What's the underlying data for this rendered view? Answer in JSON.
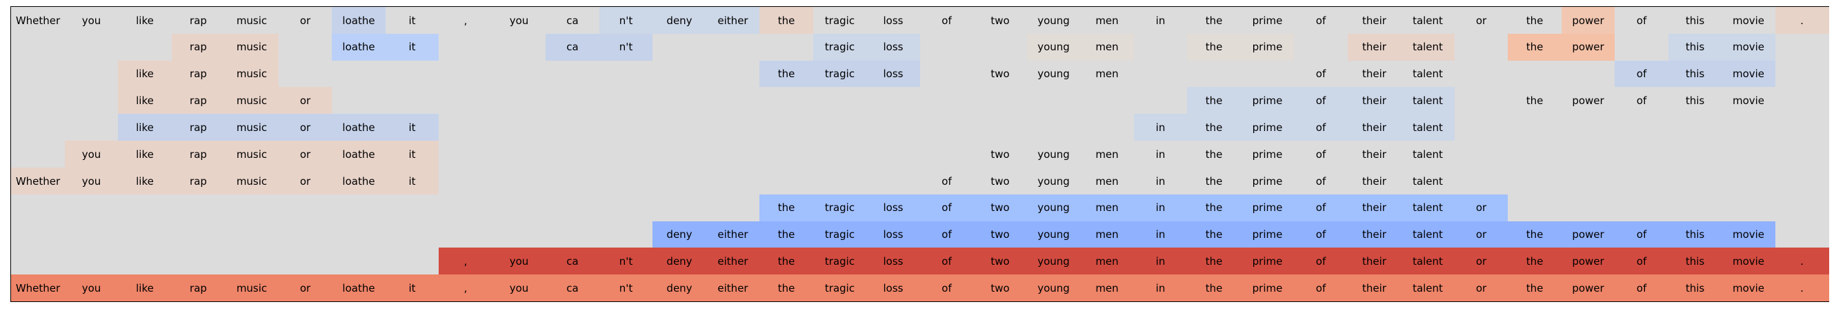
{
  "chart_data": {
    "type": "heatmap",
    "tokens": [
      "Whether",
      "you",
      "like",
      "rap",
      "music",
      "or",
      "loathe",
      "it",
      ",",
      "you",
      "ca",
      "n't",
      "deny",
      "either",
      "the",
      "tragic",
      "loss",
      "of",
      "two",
      "young",
      "men",
      "in",
      "the",
      "prime",
      "of",
      "their",
      "talent",
      "or",
      "the",
      "power",
      "of",
      "this",
      "movie",
      "."
    ],
    "rows": [
      {
        "words": [
          "Whether",
          "you",
          "like",
          "rap",
          "music",
          "or",
          "loathe",
          "it",
          ",",
          "you",
          "ca",
          "n't",
          "deny",
          "either",
          "the",
          "tragic",
          "loss",
          "of",
          "two",
          "young",
          "men",
          "in",
          "the",
          "prime",
          "of",
          "their",
          "talent",
          "or",
          "the",
          "power",
          "of",
          "this",
          "movie",
          "."
        ],
        "colors": [
          "#dcdcdc",
          "#dcdcdc",
          "#dcdcdc",
          "#dcdcdc",
          "#dcdcdc",
          "#dcdcdc",
          "#c5d2ea",
          "#dcdcdc",
          "#dcdcdc",
          "#dcdcdc",
          "#dcdcdc",
          "#ccd7e8",
          "#ccd7e8",
          "#ccd7e8",
          "#e8d3c9",
          "#dcdcdc",
          "#dcdcdc",
          "#dcdcdc",
          "#dcdcdc",
          "#dcdcdc",
          "#dcdcdc",
          "#dcdcdc",
          "#dcdcdc",
          "#dcdcdc",
          "#dcdcdc",
          "#dcdcdc",
          "#dcdcdc",
          "#dcdcdc",
          "#dcdcdc",
          "#f1c7b1",
          "#dcdcdc",
          "#dcdcdc",
          "#dcdcdc",
          "#e8d3c9"
        ]
      },
      {
        "words": [
          "",
          "",
          "",
          "rap",
          "music",
          "",
          "loathe",
          "it",
          "",
          "",
          "ca",
          "n't",
          "",
          "",
          "",
          "tragic",
          "loss",
          "",
          "",
          "young",
          "men",
          "",
          "the",
          "prime",
          "",
          "their",
          "talent",
          "",
          "the",
          "power",
          "",
          "this",
          "movie",
          ""
        ],
        "colors": [
          "#dcdcdc",
          "#dcdcdc",
          "#dcdcdc",
          "#e8d3c9",
          "#e8d3c9",
          "#dcdcdc",
          "#bad0f8",
          "#bad0f8",
          "#dcdcdc",
          "#dcdcdc",
          "#c5d2ea",
          "#c5d2ea",
          "#dcdcdc",
          "#dcdcdc",
          "#dcdcdc",
          "#ccd7e8",
          "#ccd7e8",
          "#dcdcdc",
          "#dcdcdc",
          "#e2dcd7",
          "#e2dcd7",
          "#dcdcdc",
          "#e2dcd7",
          "#e2dcd7",
          "#dcdcdc",
          "#e8d3c9",
          "#e8d3c9",
          "#dcdcdc",
          "#f4c0a6",
          "#f4c0a6",
          "#dcdcdc",
          "#ccd7e8",
          "#ccd7e8",
          "#dcdcdc"
        ]
      },
      {
        "words": [
          "",
          "",
          "like",
          "rap",
          "music",
          "",
          "",
          "",
          "",
          "",
          "",
          "",
          "",
          "",
          "the",
          "tragic",
          "loss",
          "",
          "two",
          "young",
          "men",
          "",
          "",
          "",
          "of",
          "their",
          "talent",
          "",
          "",
          "",
          "of",
          "this",
          "movie",
          ""
        ],
        "colors": [
          "#dcdcdc",
          "#dcdcdc",
          "#e8d3c9",
          "#e8d3c9",
          "#e8d3c9",
          "#dcdcdc",
          "#dcdcdc",
          "#dcdcdc",
          "#dcdcdc",
          "#dcdcdc",
          "#dcdcdc",
          "#dcdcdc",
          "#dcdcdc",
          "#dcdcdc",
          "#c5d2ea",
          "#c5d2ea",
          "#c5d2ea",
          "#dcdcdc",
          "#dcdcdc",
          "#dcdcdc",
          "#dcdcdc",
          "#dcdcdc",
          "#dcdcdc",
          "#dcdcdc",
          "#dcdcdc",
          "#dcdcdc",
          "#dcdcdc",
          "#dcdcdc",
          "#dcdcdc",
          "#dcdcdc",
          "#c5d2ea",
          "#c5d2ea",
          "#c5d2ea",
          "#dcdcdc"
        ]
      },
      {
        "words": [
          "",
          "",
          "like",
          "rap",
          "music",
          "or",
          "",
          "",
          "",
          "",
          "",
          "",
          "",
          "",
          "",
          "",
          "",
          "",
          "",
          "",
          "",
          "",
          "the",
          "prime",
          "of",
          "their",
          "talent",
          "",
          "the",
          "power",
          "of",
          "this",
          "movie",
          ""
        ],
        "colors": [
          "#dcdcdc",
          "#dcdcdc",
          "#e8d3c9",
          "#e8d3c9",
          "#e8d3c9",
          "#e8d3c9",
          "#dcdcdc",
          "#dcdcdc",
          "#dcdcdc",
          "#dcdcdc",
          "#dcdcdc",
          "#dcdcdc",
          "#dcdcdc",
          "#dcdcdc",
          "#dcdcdc",
          "#dcdcdc",
          "#dcdcdc",
          "#dcdcdc",
          "#dcdcdc",
          "#dcdcdc",
          "#dcdcdc",
          "#dcdcdc",
          "#ccd7e8",
          "#ccd7e8",
          "#ccd7e8",
          "#ccd7e8",
          "#ccd7e8",
          "#dcdcdc",
          "#dcdcdc",
          "#dcdcdc",
          "#dcdcdc",
          "#dcdcdc",
          "#dcdcdc",
          "#dcdcdc"
        ]
      },
      {
        "words": [
          "",
          "",
          "like",
          "rap",
          "music",
          "or",
          "loathe",
          "it",
          "",
          "",
          "",
          "",
          "",
          "",
          "",
          "",
          "",
          "",
          "",
          "",
          "",
          "in",
          "the",
          "prime",
          "of",
          "their",
          "talent",
          "",
          "",
          "",
          "",
          "",
          "",
          ""
        ],
        "colors": [
          "#dcdcdc",
          "#dcdcdc",
          "#c5d2ea",
          "#c5d2ea",
          "#c5d2ea",
          "#c5d2ea",
          "#c5d2ea",
          "#c5d2ea",
          "#dcdcdc",
          "#dcdcdc",
          "#dcdcdc",
          "#dcdcdc",
          "#dcdcdc",
          "#dcdcdc",
          "#dcdcdc",
          "#dcdcdc",
          "#dcdcdc",
          "#dcdcdc",
          "#dcdcdc",
          "#dcdcdc",
          "#dcdcdc",
          "#ccd7e8",
          "#ccd7e8",
          "#ccd7e8",
          "#ccd7e8",
          "#ccd7e8",
          "#ccd7e8",
          "#dcdcdc",
          "#dcdcdc",
          "#dcdcdc",
          "#dcdcdc",
          "#dcdcdc",
          "#dcdcdc",
          "#dcdcdc"
        ]
      },
      {
        "words": [
          "",
          "you",
          "like",
          "rap",
          "music",
          "or",
          "loathe",
          "it",
          "",
          "",
          "",
          "",
          "",
          "",
          "",
          "",
          "",
          "",
          "two",
          "young",
          "men",
          "in",
          "the",
          "prime",
          "of",
          "their",
          "talent",
          "",
          "",
          "",
          "",
          "",
          "",
          ""
        ],
        "colors": [
          "#dcdcdc",
          "#e8d3c9",
          "#e8d3c9",
          "#e8d3c9",
          "#e8d3c9",
          "#e8d3c9",
          "#e8d3c9",
          "#e8d3c9",
          "#dcdcdc",
          "#dcdcdc",
          "#dcdcdc",
          "#dcdcdc",
          "#dcdcdc",
          "#dcdcdc",
          "#dcdcdc",
          "#dcdcdc",
          "#dcdcdc",
          "#dcdcdc",
          "#dcdcdc",
          "#dcdcdc",
          "#dcdcdc",
          "#dcdcdc",
          "#dcdcdc",
          "#dcdcdc",
          "#dcdcdc",
          "#dcdcdc",
          "#dcdcdc",
          "#dcdcdc",
          "#dcdcdc",
          "#dcdcdc",
          "#dcdcdc",
          "#dcdcdc",
          "#dcdcdc",
          "#dcdcdc"
        ]
      },
      {
        "words": [
          "Whether",
          "you",
          "like",
          "rap",
          "music",
          "or",
          "loathe",
          "it",
          "",
          "",
          "",
          "",
          "",
          "",
          "",
          "",
          "",
          "of",
          "two",
          "young",
          "men",
          "in",
          "the",
          "prime",
          "of",
          "their",
          "talent",
          "",
          "",
          "",
          "",
          "",
          "",
          ""
        ],
        "colors": [
          "#e8d3c9",
          "#e8d3c9",
          "#e8d3c9",
          "#e8d3c9",
          "#e8d3c9",
          "#e8d3c9",
          "#e8d3c9",
          "#e8d3c9",
          "#dcdcdc",
          "#dcdcdc",
          "#dcdcdc",
          "#dcdcdc",
          "#dcdcdc",
          "#dcdcdc",
          "#dcdcdc",
          "#dcdcdc",
          "#dcdcdc",
          "#dcdcdc",
          "#dcdcdc",
          "#dcdcdc",
          "#dcdcdc",
          "#dcdcdc",
          "#dcdcdc",
          "#dcdcdc",
          "#dcdcdc",
          "#dcdcdc",
          "#dcdcdc",
          "#dcdcdc",
          "#dcdcdc",
          "#dcdcdc",
          "#dcdcdc",
          "#dcdcdc",
          "#dcdcdc",
          "#dcdcdc"
        ]
      },
      {
        "words": [
          "",
          "",
          "",
          "",
          "",
          "",
          "",
          "",
          "",
          "",
          "",
          "",
          "",
          "",
          "the",
          "tragic",
          "loss",
          "of",
          "two",
          "young",
          "men",
          "in",
          "the",
          "prime",
          "of",
          "their",
          "talent",
          "or",
          "",
          "",
          "",
          "",
          "",
          ""
        ],
        "colors": [
          "#dcdcdc",
          "#dcdcdc",
          "#dcdcdc",
          "#dcdcdc",
          "#dcdcdc",
          "#dcdcdc",
          "#dcdcdc",
          "#dcdcdc",
          "#dcdcdc",
          "#dcdcdc",
          "#dcdcdc",
          "#dcdcdc",
          "#dcdcdc",
          "#dcdcdc",
          "#a1c0fe",
          "#a1c0fe",
          "#a1c0fe",
          "#a1c0fe",
          "#a1c0fe",
          "#a1c0fe",
          "#a1c0fe",
          "#a1c0fe",
          "#a1c0fe",
          "#a1c0fe",
          "#a1c0fe",
          "#a1c0fe",
          "#a1c0fe",
          "#a1c0fe",
          "#dcdcdc",
          "#dcdcdc",
          "#dcdcdc",
          "#dcdcdc",
          "#dcdcdc",
          "#dcdcdc"
        ]
      },
      {
        "words": [
          "",
          "",
          "",
          "",
          "",
          "",
          "",
          "",
          "",
          "",
          "",
          "",
          "deny",
          "either",
          "the",
          "tragic",
          "loss",
          "of",
          "two",
          "young",
          "men",
          "in",
          "the",
          "prime",
          "of",
          "their",
          "talent",
          "or",
          "the",
          "power",
          "of",
          "this",
          "movie",
          ""
        ],
        "colors": [
          "#dcdcdc",
          "#dcdcdc",
          "#dcdcdc",
          "#dcdcdc",
          "#dcdcdc",
          "#dcdcdc",
          "#dcdcdc",
          "#dcdcdc",
          "#dcdcdc",
          "#dcdcdc",
          "#dcdcdc",
          "#dcdcdc",
          "#8fb1fe",
          "#8fb1fe",
          "#8fb1fe",
          "#8fb1fe",
          "#8fb1fe",
          "#8fb1fe",
          "#8fb1fe",
          "#8fb1fe",
          "#8fb1fe",
          "#8fb1fe",
          "#8fb1fe",
          "#8fb1fe",
          "#8fb1fe",
          "#8fb1fe",
          "#8fb1fe",
          "#8fb1fe",
          "#8fb1fe",
          "#8fb1fe",
          "#8fb1fe",
          "#8fb1fe",
          "#8fb1fe",
          "#dcdcdc"
        ]
      },
      {
        "words": [
          "",
          "",
          "",
          "",
          "",
          "",
          "",
          "",
          ",",
          "you",
          "ca",
          "n't",
          "deny",
          "either",
          "the",
          "tragic",
          "loss",
          "of",
          "two",
          "young",
          "men",
          "in",
          "the",
          "prime",
          "of",
          "their",
          "talent",
          "or",
          "the",
          "power",
          "of",
          "this",
          "movie",
          "."
        ],
        "colors": [
          "#dcdcdc",
          "#dcdcdc",
          "#dcdcdc",
          "#dcdcdc",
          "#dcdcdc",
          "#dcdcdc",
          "#dcdcdc",
          "#dcdcdc",
          "#d24b40",
          "#d24b40",
          "#d24b40",
          "#d24b40",
          "#d24b40",
          "#d24b40",
          "#d24b40",
          "#d24b40",
          "#d24b40",
          "#d24b40",
          "#d24b40",
          "#d24b40",
          "#d24b40",
          "#d24b40",
          "#d24b40",
          "#d24b40",
          "#d24b40",
          "#d24b40",
          "#d24b40",
          "#d24b40",
          "#d24b40",
          "#d24b40",
          "#d24b40",
          "#d24b40",
          "#d24b40",
          "#d24b40"
        ]
      },
      {
        "words": [
          "Whether",
          "you",
          "like",
          "rap",
          "music",
          "or",
          "loathe",
          "it",
          ",",
          "you",
          "ca",
          "n't",
          "deny",
          "either",
          "the",
          "tragic",
          "loss",
          "of",
          "two",
          "young",
          "men",
          "in",
          "the",
          "prime",
          "of",
          "their",
          "talent",
          "or",
          "the",
          "power",
          "of",
          "this",
          "movie",
          "."
        ],
        "colors": [
          "#ee8468",
          "#ee8468",
          "#ee8468",
          "#ee8468",
          "#ee8468",
          "#ee8468",
          "#ee8468",
          "#ee8468",
          "#ee8468",
          "#ee8468",
          "#ee8468",
          "#ee8468",
          "#ee8468",
          "#ee8468",
          "#ee8468",
          "#ee8468",
          "#ee8468",
          "#ee8468",
          "#ee8468",
          "#ee8468",
          "#ee8468",
          "#ee8468",
          "#ee8468",
          "#ee8468",
          "#ee8468",
          "#ee8468",
          "#ee8468",
          "#ee8468",
          "#ee8468",
          "#ee8468",
          "#ee8468",
          "#ee8468",
          "#ee8468",
          "#ee8468"
        ]
      }
    ]
  }
}
